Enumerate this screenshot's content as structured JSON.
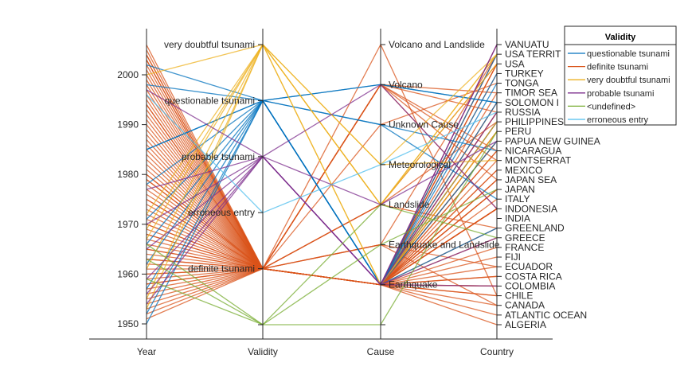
{
  "chart_data": {
    "type": "parallel-coordinates",
    "coordinates": [
      "Year",
      "Validity",
      "Cause",
      "Country"
    ],
    "year_range": [
      1950,
      2009
    ],
    "year_ticks": [
      1950,
      1960,
      1970,
      1980,
      1990,
      2000
    ],
    "validity_categories": [
      "<undefined>",
      "definite tsunami",
      "erroneous entry",
      "probable tsunami",
      "questionable tsunami",
      "very doubtful tsunami"
    ],
    "validity_tick_labels": [
      "",
      "definite tsunami",
      "erroneous entry",
      "probable tsunami",
      "questionable tsunami",
      "very doubtful tsunami"
    ],
    "cause_categories": [
      "",
      "Earthquake",
      "Earthquake and Landslide",
      "Landslide",
      "Meteorological",
      "Unknown Cause",
      "Volcano",
      "Volcano and Landslide"
    ],
    "country_categories": [
      "ALGERIA",
      "ATLANTIC OCEAN",
      "CANADA",
      "CHILE",
      "COLOMBIA",
      "COSTA RICA",
      "ECUADOR",
      "FIJI",
      "FRANCE",
      "GREECE",
      "GREENLAND",
      "INDIA",
      "INDONESIA",
      "ITALY",
      "JAPAN",
      "JAPAN SEA",
      "MEXICO",
      "MONTSERRAT",
      "NICARAGUA",
      "PAPUA NEW GUINEA",
      "PERU",
      "PHILIPPINES",
      "RUSSIA",
      "SOLOMON I",
      "TIMOR SEA",
      "TONGA",
      "TURKEY",
      "USA",
      "USA TERRIT",
      "VANUATU"
    ],
    "legend": {
      "title": "Validity",
      "placement": "top-right",
      "entries": [
        {
          "label": "questionable tsunami",
          "color": "#0072BD"
        },
        {
          "label": "definite tsunami",
          "color": "#D95319"
        },
        {
          "label": "very doubtful tsunami",
          "color": "#EDB120"
        },
        {
          "label": "probable tsunami",
          "color": "#7E2F8E"
        },
        {
          "label": "<undefined>",
          "color": "#77AC30"
        },
        {
          "label": "erroneous entry",
          "color": "#4DBEEE"
        }
      ]
    },
    "validity_colors": [
      "#77AC30",
      "#D95319",
      "#4DBEEE",
      "#7E2F8E",
      "#0072BD",
      "#EDB120"
    ],
    "records_fields": [
      "year",
      "validity_index",
      "cause_index",
      "country_index"
    ],
    "records": [
      [
        1951,
        1,
        1,
        3
      ],
      [
        1952,
        1,
        1,
        4
      ],
      [
        1953,
        1,
        1,
        12
      ],
      [
        1955,
        1,
        1,
        15
      ],
      [
        1956,
        1,
        1,
        0
      ],
      [
        1957,
        1,
        1,
        2
      ],
      [
        1958,
        1,
        1,
        6
      ],
      [
        1960,
        1,
        1,
        3
      ],
      [
        1960,
        1,
        1,
        5
      ],
      [
        1961,
        1,
        1,
        21
      ],
      [
        1962,
        1,
        1,
        14
      ],
      [
        1963,
        1,
        1,
        7
      ],
      [
        1964,
        1,
        1,
        27
      ],
      [
        1965,
        1,
        1,
        12
      ],
      [
        1966,
        1,
        1,
        20
      ],
      [
        1967,
        1,
        1,
        22
      ],
      [
        1968,
        1,
        1,
        14
      ],
      [
        1969,
        1,
        1,
        16
      ],
      [
        1970,
        1,
        1,
        19
      ],
      [
        1971,
        1,
        1,
        12
      ],
      [
        1972,
        1,
        1,
        9
      ],
      [
        1973,
        1,
        1,
        1
      ],
      [
        1974,
        1,
        1,
        15
      ],
      [
        1975,
        1,
        1,
        23
      ],
      [
        1976,
        1,
        1,
        21
      ],
      [
        1977,
        1,
        1,
        18
      ],
      [
        1978,
        1,
        1,
        27
      ],
      [
        1979,
        1,
        1,
        4
      ],
      [
        1980,
        1,
        1,
        16
      ],
      [
        1981,
        1,
        1,
        26
      ],
      [
        1982,
        1,
        1,
        19
      ],
      [
        1983,
        1,
        1,
        12
      ],
      [
        1984,
        1,
        1,
        22
      ],
      [
        1985,
        1,
        1,
        20
      ],
      [
        1986,
        1,
        1,
        14
      ],
      [
        1987,
        1,
        1,
        24
      ],
      [
        1988,
        1,
        1,
        12
      ],
      [
        1990,
        1,
        1,
        5
      ],
      [
        1991,
        1,
        1,
        10
      ],
      [
        1992,
        1,
        1,
        18
      ],
      [
        1993,
        1,
        1,
        15
      ],
      [
        1994,
        1,
        1,
        12
      ],
      [
        1995,
        1,
        1,
        20
      ],
      [
        1996,
        1,
        1,
        29
      ],
      [
        1997,
        1,
        1,
        21
      ],
      [
        1998,
        1,
        1,
        19
      ],
      [
        1999,
        1,
        1,
        28
      ],
      [
        2000,
        1,
        1,
        17
      ],
      [
        2001,
        1,
        1,
        13
      ],
      [
        2002,
        1,
        1,
        28
      ],
      [
        2003,
        1,
        1,
        27
      ],
      [
        2004,
        1,
        1,
        12
      ],
      [
        2005,
        1,
        1,
        8
      ],
      [
        2006,
        1,
        1,
        23
      ],
      [
        1954,
        1,
        6,
        15
      ],
      [
        1963,
        1,
        6,
        18
      ],
      [
        1968,
        1,
        6,
        12
      ],
      [
        1979,
        1,
        6,
        22
      ],
      [
        1994,
        1,
        6,
        24
      ],
      [
        2003,
        1,
        6,
        17
      ],
      [
        1959,
        1,
        2,
        2
      ],
      [
        1975,
        1,
        2,
        28
      ],
      [
        1989,
        1,
        2,
        6
      ],
      [
        1958,
        1,
        3,
        27
      ],
      [
        1965,
        1,
        3,
        10
      ],
      [
        2004,
        1,
        3,
        21
      ],
      [
        1970,
        1,
        5,
        25
      ],
      [
        1980,
        1,
        7,
        3
      ],
      [
        1950,
        4,
        1,
        10
      ],
      [
        1952,
        4,
        1,
        23
      ],
      [
        1957,
        4,
        6,
        23
      ],
      [
        1966,
        4,
        1,
        26
      ],
      [
        1971,
        4,
        5,
        13
      ],
      [
        1978,
        4,
        1,
        25
      ],
      [
        1985,
        4,
        1,
        21
      ],
      [
        1985,
        4,
        1,
        28
      ],
      [
        1998,
        4,
        6,
        23
      ],
      [
        2002,
        4,
        5,
        18
      ],
      [
        1962,
        4,
        1,
        19
      ],
      [
        1953,
        5,
        4,
        28
      ],
      [
        1955,
        5,
        3,
        27
      ],
      [
        1961,
        5,
        4,
        17
      ],
      [
        1967,
        5,
        3,
        28
      ],
      [
        1972,
        5,
        1,
        20
      ],
      [
        2000,
        5,
        3,
        28
      ],
      [
        1969,
        5,
        1,
        21
      ],
      [
        1954,
        3,
        1,
        4
      ],
      [
        1956,
        3,
        1,
        9
      ],
      [
        1959,
        3,
        6,
        12
      ],
      [
        1965,
        3,
        1,
        29
      ],
      [
        1970,
        3,
        3,
        19
      ],
      [
        1977,
        3,
        1,
        29
      ],
      [
        1997,
        3,
        1,
        22
      ],
      [
        1959,
        0,
        0,
        20
      ],
      [
        1963,
        0,
        3,
        9
      ],
      [
        1966,
        0,
        2,
        14
      ],
      [
        1996,
        2,
        4,
        22
      ]
    ]
  }
}
